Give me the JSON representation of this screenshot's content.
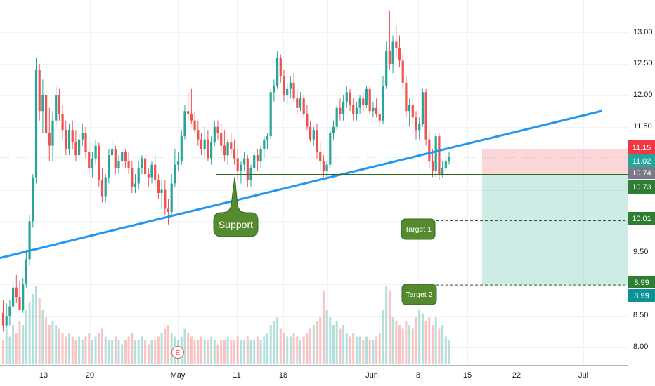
{
  "chart_data": {
    "type": "candlestick",
    "xlabel": "",
    "ylabel": "",
    "ylim": [
      7.7,
      13.45
    ],
    "grid": true,
    "x_ticks": [
      "13",
      "20",
      "May",
      "11",
      "18",
      "",
      "Jun",
      "8",
      "15",
      "22",
      "Jul"
    ],
    "y_ticks": [
      "8.00",
      "8.50",
      "9.00",
      "9.50",
      "10.00",
      "10.50",
      "11.00",
      "11.50",
      "12.00",
      "12.50",
      "13.00"
    ],
    "price_labels": [
      {
        "value": "11.15",
        "color": "#f23645"
      },
      {
        "value": "11.02",
        "color": "#26a69a"
      },
      {
        "value": "10.74",
        "color": "#787b86"
      },
      {
        "value": "10.73",
        "color": "#2e7d32"
      },
      {
        "value": "10.01",
        "color": "#2e7d32"
      },
      {
        "value": "8.99",
        "color": "#2e7d32"
      },
      {
        "value": "8.99",
        "color": "#0a9396"
      }
    ],
    "annotations": [
      {
        "text": "Support"
      },
      {
        "text": "Target 1"
      },
      {
        "text": "Target 2"
      }
    ],
    "earnings_marker": "E",
    "support_level": 10.74,
    "target1_level": 10.01,
    "target2_level": 8.99,
    "current_price": 11.02,
    "stop_level": 11.15,
    "trendline": {
      "from": [
        0,
        9.42
      ],
      "to": [
        181,
        11.75
      ]
    },
    "colors": {
      "up": "#26a69a",
      "down": "#ef5350",
      "trendline": "#2196f3",
      "support": "#33691e"
    },
    "candles": {
      "fields": [
        "open",
        "high",
        "low",
        "close"
      ],
      "values": [
        [
          8.55,
          8.75,
          8.25,
          8.35
        ],
        [
          8.35,
          8.7,
          8.3,
          8.5
        ],
        [
          8.5,
          8.75,
          8.35,
          8.65
        ],
        [
          8.65,
          9.05,
          8.6,
          8.95
        ],
        [
          8.95,
          9.15,
          8.7,
          8.8
        ],
        [
          8.8,
          9.05,
          8.6,
          8.6
        ],
        [
          8.6,
          9.1,
          8.55,
          9.0
        ],
        [
          9.0,
          9.55,
          8.95,
          9.4
        ],
        [
          9.4,
          10.1,
          9.3,
          10.0
        ],
        [
          10.0,
          10.75,
          9.9,
          10.7
        ],
        [
          10.7,
          12.6,
          10.6,
          12.4
        ],
        [
          12.4,
          12.5,
          11.6,
          11.75
        ],
        [
          11.75,
          12.25,
          11.4,
          12.0
        ],
        [
          12.0,
          12.1,
          11.2,
          11.4
        ],
        [
          11.4,
          11.8,
          10.95,
          11.2
        ],
        [
          11.2,
          11.75,
          10.95,
          11.6
        ],
        [
          11.6,
          12.15,
          11.5,
          12.0
        ],
        [
          12.0,
          12.1,
          11.6,
          11.7
        ],
        [
          11.7,
          11.85,
          11.3,
          11.45
        ],
        [
          11.45,
          11.6,
          11.05,
          11.15
        ],
        [
          11.15,
          11.55,
          11.05,
          11.45
        ],
        [
          11.45,
          11.6,
          11.15,
          11.25
        ],
        [
          11.25,
          11.45,
          10.95,
          11.05
        ],
        [
          11.05,
          11.4,
          10.95,
          11.3
        ],
        [
          11.3,
          11.55,
          11.2,
          11.4
        ],
        [
          11.4,
          11.5,
          11.0,
          11.1
        ],
        [
          11.1,
          11.25,
          10.75,
          10.85
        ],
        [
          10.85,
          11.1,
          10.7,
          11.0
        ],
        [
          11.0,
          11.3,
          10.9,
          11.2
        ],
        [
          11.2,
          11.25,
          10.55,
          10.65
        ],
        [
          10.65,
          10.85,
          10.3,
          10.4
        ],
        [
          10.4,
          10.75,
          10.3,
          10.7
        ],
        [
          10.7,
          11.15,
          10.6,
          11.05
        ],
        [
          11.05,
          11.3,
          10.95,
          11.15
        ],
        [
          11.15,
          11.2,
          10.75,
          10.85
        ],
        [
          10.85,
          11.05,
          10.75,
          10.95
        ],
        [
          10.95,
          11.15,
          10.85,
          11.1
        ],
        [
          11.1,
          11.15,
          10.85,
          10.95
        ],
        [
          10.95,
          11.1,
          10.75,
          10.85
        ],
        [
          10.85,
          10.95,
          10.45,
          10.55
        ],
        [
          10.55,
          10.75,
          10.45,
          10.6
        ],
        [
          10.6,
          10.95,
          10.5,
          10.85
        ],
        [
          10.85,
          11.05,
          10.75,
          11.0
        ],
        [
          11.0,
          11.05,
          10.65,
          10.75
        ],
        [
          10.75,
          10.85,
          10.55,
          10.7
        ],
        [
          10.7,
          10.95,
          10.6,
          10.9
        ],
        [
          10.9,
          11.05,
          10.55,
          10.65
        ],
        [
          10.65,
          10.75,
          10.35,
          10.45
        ],
        [
          10.45,
          10.65,
          10.2,
          10.5
        ],
        [
          10.5,
          10.65,
          10.1,
          10.2
        ],
        [
          10.2,
          10.35,
          9.95,
          10.15
        ],
        [
          10.15,
          10.75,
          10.1,
          10.6
        ],
        [
          10.6,
          11.15,
          10.55,
          10.9
        ],
        [
          10.9,
          11.1,
          10.8,
          10.95
        ],
        [
          10.95,
          11.45,
          10.9,
          11.35
        ],
        [
          11.35,
          11.85,
          11.3,
          11.75
        ],
        [
          11.75,
          12.05,
          11.6,
          11.7
        ],
        [
          11.7,
          12.1,
          11.55,
          11.6
        ],
        [
          11.6,
          11.75,
          11.4,
          11.45
        ],
        [
          11.45,
          11.6,
          11.2,
          11.3
        ],
        [
          11.3,
          11.4,
          11.05,
          11.15
        ],
        [
          11.15,
          11.5,
          11.0,
          11.3
        ],
        [
          11.3,
          11.45,
          10.95,
          11.0
        ],
        [
          11.0,
          11.35,
          10.9,
          11.25
        ],
        [
          11.25,
          11.6,
          11.2,
          11.5
        ],
        [
          11.5,
          11.6,
          11.3,
          11.4
        ],
        [
          11.4,
          11.55,
          11.1,
          11.2
        ],
        [
          11.2,
          11.45,
          10.95,
          11.05
        ],
        [
          11.05,
          11.3,
          10.9,
          11.25
        ],
        [
          11.25,
          11.4,
          11.05,
          11.15
        ],
        [
          11.15,
          11.3,
          10.9,
          11.0
        ],
        [
          11.0,
          11.15,
          10.65,
          10.8
        ],
        [
          10.8,
          10.95,
          10.6,
          10.9
        ],
        [
          10.9,
          11.1,
          10.8,
          11.0
        ],
        [
          11.0,
          11.05,
          10.55,
          10.65
        ],
        [
          10.65,
          10.9,
          10.55,
          10.85
        ],
        [
          10.85,
          11.1,
          10.75,
          11.05
        ],
        [
          11.05,
          11.15,
          10.8,
          10.95
        ],
        [
          10.95,
          11.2,
          10.85,
          11.15
        ],
        [
          11.15,
          11.35,
          11.0,
          11.3
        ],
        [
          11.3,
          11.4,
          11.15,
          11.35
        ],
        [
          11.35,
          12.1,
          11.3,
          12.05
        ],
        [
          12.05,
          12.25,
          11.9,
          12.15
        ],
        [
          12.15,
          12.7,
          12.1,
          12.6
        ],
        [
          12.6,
          12.65,
          12.2,
          12.3
        ],
        [
          12.3,
          12.4,
          11.9,
          12.0
        ],
        [
          12.0,
          12.2,
          11.85,
          12.1
        ],
        [
          12.1,
          12.3,
          11.95,
          12.2
        ],
        [
          12.2,
          12.35,
          11.9,
          11.95
        ],
        [
          11.95,
          12.1,
          11.7,
          11.8
        ],
        [
          11.8,
          12.05,
          11.75,
          11.95
        ],
        [
          11.95,
          12.0,
          11.65,
          11.7
        ],
        [
          11.7,
          11.85,
          11.45,
          11.5
        ],
        [
          11.5,
          11.6,
          11.25,
          11.3
        ],
        [
          11.3,
          11.5,
          11.2,
          11.45
        ],
        [
          11.45,
          11.55,
          11.0,
          11.1
        ],
        [
          11.1,
          11.25,
          10.8,
          10.95
        ],
        [
          10.95,
          11.05,
          10.7,
          10.8
        ],
        [
          10.8,
          10.95,
          10.65,
          10.9
        ],
        [
          10.9,
          11.45,
          10.85,
          11.4
        ],
        [
          11.4,
          11.6,
          11.3,
          11.5
        ],
        [
          11.5,
          11.85,
          11.45,
          11.8
        ],
        [
          11.8,
          11.95,
          11.6,
          11.7
        ],
        [
          11.7,
          12.0,
          11.6,
          11.9
        ],
        [
          11.9,
          12.15,
          11.8,
          12.05
        ],
        [
          12.05,
          12.1,
          11.75,
          11.85
        ],
        [
          11.85,
          11.95,
          11.6,
          11.7
        ],
        [
          11.7,
          11.9,
          11.6,
          11.8
        ],
        [
          11.8,
          12.0,
          11.7,
          11.95
        ],
        [
          11.95,
          12.05,
          11.75,
          11.85
        ],
        [
          11.85,
          12.15,
          11.8,
          12.1
        ],
        [
          12.1,
          12.15,
          11.7,
          11.75
        ],
        [
          11.75,
          11.9,
          11.65,
          11.8
        ],
        [
          11.8,
          11.95,
          11.65,
          11.7
        ],
        [
          11.7,
          11.8,
          11.5,
          11.6
        ],
        [
          11.6,
          12.3,
          11.55,
          12.15
        ],
        [
          12.15,
          12.85,
          12.1,
          12.7
        ],
        [
          12.7,
          13.35,
          12.4,
          12.5
        ],
        [
          12.5,
          12.95,
          12.35,
          12.85
        ],
        [
          12.85,
          13.1,
          12.6,
          12.75
        ],
        [
          12.75,
          12.95,
          12.45,
          12.55
        ],
        [
          12.55,
          12.65,
          12.1,
          12.2
        ],
        [
          12.2,
          12.3,
          11.65,
          11.75
        ],
        [
          11.75,
          11.95,
          11.5,
          11.85
        ],
        [
          11.85,
          11.95,
          11.55,
          11.65
        ],
        [
          11.65,
          11.75,
          11.3,
          11.45
        ],
        [
          11.45,
          11.65,
          11.3,
          11.55
        ],
        [
          11.55,
          12.1,
          11.5,
          12.05
        ],
        [
          12.05,
          12.1,
          11.2,
          11.3
        ],
        [
          11.3,
          11.45,
          10.85,
          10.95
        ],
        [
          10.95,
          11.15,
          10.7,
          10.8
        ],
        [
          10.8,
          11.4,
          10.7,
          11.35
        ],
        [
          11.35,
          11.4,
          10.65,
          10.75
        ],
        [
          10.75,
          10.95,
          10.7,
          10.85
        ],
        [
          10.85,
          11.0,
          10.8,
          10.95
        ],
        [
          10.95,
          11.1,
          10.9,
          11.02
        ]
      ]
    },
    "volume": [
      0.3,
      0.45,
      0.35,
      0.5,
      0.4,
      0.55,
      0.5,
      0.7,
      0.8,
      0.9,
      1.0,
      0.85,
      0.7,
      0.6,
      0.5,
      0.55,
      0.5,
      0.45,
      0.4,
      0.35,
      0.4,
      0.35,
      0.3,
      0.35,
      0.3,
      0.35,
      0.4,
      0.3,
      0.35,
      0.4,
      0.45,
      0.35,
      0.3,
      0.3,
      0.35,
      0.3,
      0.25,
      0.3,
      0.35,
      0.4,
      0.3,
      0.3,
      0.35,
      0.3,
      0.25,
      0.3,
      0.3,
      0.35,
      0.4,
      0.45,
      0.5,
      0.4,
      0.35,
      0.3,
      0.35,
      0.45,
      0.4,
      0.35,
      0.3,
      0.3,
      0.35,
      0.3,
      0.3,
      0.35,
      0.3,
      0.25,
      0.3,
      0.3,
      0.35,
      0.3,
      0.3,
      0.35,
      0.3,
      0.3,
      0.35,
      0.3,
      0.3,
      0.35,
      0.3,
      0.35,
      0.4,
      0.5,
      0.55,
      0.6,
      0.45,
      0.4,
      0.35,
      0.35,
      0.4,
      0.35,
      0.3,
      0.35,
      0.4,
      0.45,
      0.5,
      0.55,
      0.6,
      0.95,
      0.7,
      0.6,
      0.5,
      0.55,
      0.45,
      0.5,
      0.4,
      0.35,
      0.4,
      0.35,
      0.35,
      0.3,
      0.35,
      0.3,
      0.3,
      0.35,
      0.4,
      0.7,
      1.0,
      0.95,
      0.6,
      0.55,
      0.5,
      0.45,
      0.55,
      0.5,
      0.45,
      0.6,
      0.7,
      0.65,
      0.55,
      0.6,
      0.5,
      0.6,
      0.45,
      0.5,
      0.35,
      0.3
    ]
  }
}
